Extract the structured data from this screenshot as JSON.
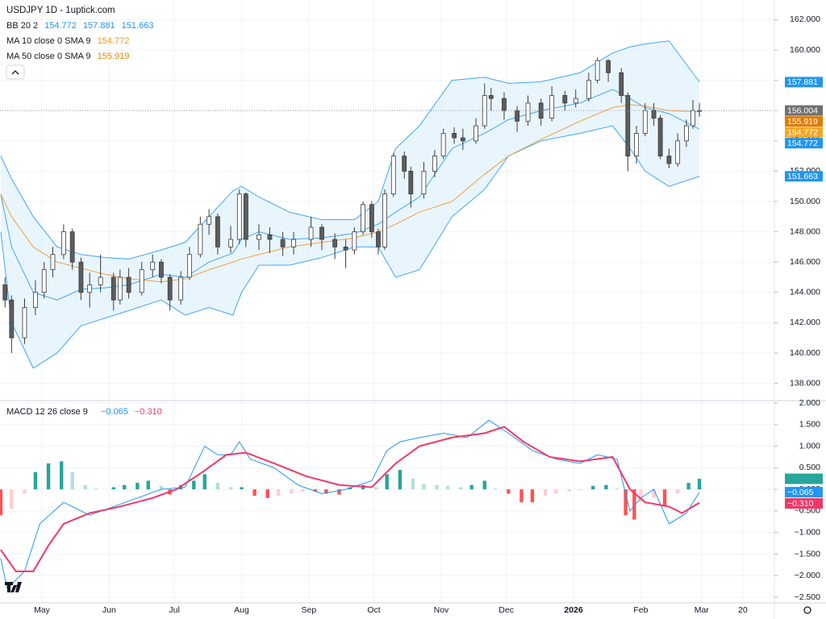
{
  "chart_data": {
    "type": "candlestick",
    "title": "USDJPY 1D - 1uptick.com",
    "legend": [
      {
        "label": "BB 20 2",
        "values": [
          154.772,
          157.881,
          151.663
        ],
        "color": "#2196f3"
      },
      {
        "label": "MA 10 close 0 SMA 9",
        "values": [
          154.772
        ],
        "color": "#f7931a"
      },
      {
        "label": "MA 50 close 0 SMA 9",
        "values": [
          155.919
        ],
        "color": "#e08a00"
      }
    ],
    "xlim": [
      -19.33,
      337.55
    ],
    "xticks": [
      {
        "value": 0,
        "label": "May"
      },
      {
        "value": 31,
        "label": "Jun"
      },
      {
        "value": 61,
        "label": "Jul"
      },
      {
        "value": 92,
        "label": "Aug"
      },
      {
        "value": 123,
        "label": "Sep"
      },
      {
        "value": 153,
        "label": "Oct"
      },
      {
        "value": 184,
        "label": "Nov"
      },
      {
        "value": 214,
        "label": "Dec"
      },
      {
        "value": 245,
        "label": "2026"
      },
      {
        "value": 276,
        "label": "Feb"
      },
      {
        "value": 304,
        "label": "Mar"
      },
      {
        "value": 323,
        "label": "20"
      }
    ],
    "ylim": [
      136.86,
      163.3
    ],
    "yticks": [
      {
        "value": 138,
        "label": "138.000"
      },
      {
        "value": 140,
        "label": "140.000"
      },
      {
        "value": 142,
        "label": "142.000"
      },
      {
        "value": 144,
        "label": "144.000"
      },
      {
        "value": 146,
        "label": "146.000"
      },
      {
        "value": 148,
        "label": "148.000"
      },
      {
        "value": 150,
        "label": "150.000"
      },
      {
        "value": 152,
        "label": "152.000"
      },
      {
        "value": 154,
        "label": "154.000"
      },
      {
        "value": 156,
        "label": "156.000"
      },
      {
        "value": 158,
        "label": "158.000"
      },
      {
        "value": 160,
        "label": "160.000"
      },
      {
        "value": 162,
        "label": "162.000"
      }
    ],
    "grid": true,
    "last_price": 156.004,
    "candles": {
      "up_color": "#ffffff",
      "down_color": "#5d5d5d",
      "edge_color": "#3b3b3b",
      "x": [
        -17,
        -14,
        -8,
        -3,
        1,
        5,
        10,
        14,
        18,
        22,
        27,
        33,
        36,
        40,
        46,
        51,
        55,
        59,
        64,
        68,
        73,
        77,
        81,
        87,
        91,
        94,
        100,
        105,
        111,
        116,
        124,
        129,
        135,
        140,
        144,
        148,
        152,
        155,
        158,
        162,
        167,
        170,
        176,
        181,
        185,
        190,
        194,
        200,
        204,
        207,
        213,
        219,
        224,
        230,
        235,
        241,
        246,
        252,
        256,
        261,
        267,
        270,
        274,
        278,
        282,
        285,
        289,
        293,
        297,
        300,
        303
      ],
      "open": [
        144.5,
        143.5,
        141,
        143,
        144,
        145.5,
        146.5,
        148,
        146,
        144,
        144.5,
        145,
        143.5,
        145,
        144,
        145.5,
        146,
        145,
        143.5,
        145,
        146.5,
        148.5,
        149,
        147,
        147.5,
        150.5,
        147.5,
        147.8,
        147.5,
        147,
        147.5,
        148.3,
        147.5,
        147,
        146.8,
        148,
        149.8,
        148,
        147,
        150.5,
        153,
        152,
        150.5,
        152,
        153,
        154.5,
        154.2,
        154,
        155,
        157,
        156.8,
        156,
        155.3,
        156.5,
        155.5,
        157,
        156.5,
        156.8,
        158,
        159.3,
        158.5,
        157,
        153,
        154.5,
        156,
        155.5,
        153,
        152.5,
        154,
        155,
        156
      ],
      "high": [
        145,
        143.8,
        143.6,
        144.8,
        146,
        147,
        148.5,
        148.2,
        146.3,
        145.3,
        146.5,
        145.3,
        145.5,
        145.6,
        146,
        146.5,
        146.2,
        145.2,
        145.4,
        147,
        149,
        149.5,
        149.2,
        148.4,
        150.8,
        150.6,
        148.5,
        148.3,
        148,
        148,
        149,
        148.5,
        147.9,
        147.5,
        148.3,
        150,
        150,
        148.2,
        150.8,
        153.2,
        153.3,
        152.3,
        152.6,
        153.4,
        154.8,
        154.9,
        154.8,
        155.5,
        157.8,
        157.5,
        157.2,
        156.3,
        157,
        156.8,
        157.6,
        157.3,
        157.4,
        158.5,
        159.5,
        159.4,
        158.8,
        157.2,
        155,
        156.5,
        156.5,
        155.7,
        153.5,
        154.5,
        155.4,
        156.7,
        156.5
      ],
      "low": [
        143,
        140,
        140.6,
        142.5,
        143.6,
        145,
        146.2,
        145.5,
        143.5,
        143,
        144,
        142.8,
        143.2,
        143.6,
        143.8,
        145,
        144.6,
        142.8,
        143.2,
        144.8,
        146.3,
        147.8,
        146.5,
        146.6,
        147.2,
        147,
        146.8,
        146.6,
        146.4,
        146.5,
        147,
        146.8,
        146.2,
        145.6,
        146.5,
        147.8,
        147.6,
        146.5,
        146.8,
        150.3,
        151.5,
        149.6,
        150.2,
        151.6,
        152.8,
        153.8,
        153.4,
        153.8,
        154.8,
        156,
        155.4,
        154.6,
        155,
        155,
        155.3,
        156,
        156.2,
        156.6,
        157.8,
        157.9,
        156.5,
        152,
        152.5,
        154.3,
        155,
        152.8,
        152.2,
        152.3,
        153.6,
        154.8,
        155.6
      ],
      "close": [
        143.5,
        141,
        143,
        144,
        145.5,
        146.5,
        148,
        146,
        144,
        144.5,
        145,
        143.5,
        145,
        144,
        145.5,
        146,
        145,
        143.5,
        145,
        146.5,
        148.5,
        149,
        147,
        147.5,
        150.5,
        147.5,
        147.8,
        147.5,
        147,
        147.5,
        148.3,
        147.5,
        147,
        146.8,
        148,
        149.8,
        148,
        147,
        150.5,
        153,
        152,
        150.5,
        152,
        153,
        154.5,
        154.2,
        154,
        155,
        157,
        156.8,
        156,
        155.3,
        156.5,
        155.5,
        157,
        156.5,
        156.8,
        158,
        159.3,
        158.5,
        157,
        153,
        154.5,
        156,
        155.5,
        153,
        152.5,
        154,
        155,
        156,
        156.004
      ]
    },
    "bands": {
      "fill": "#e3f2fd",
      "x": [
        -19,
        -14,
        -4,
        7,
        18,
        29,
        40,
        55,
        66,
        77,
        88,
        92,
        100,
        114,
        129,
        144,
        155,
        163,
        174,
        189,
        204,
        215,
        230,
        248,
        263,
        271,
        278,
        289,
        303
      ],
      "series": [
        {
          "color": "#42a5f5",
          "values": [
            153,
            151.5,
            149,
            147,
            146.5,
            146.3,
            146.2,
            146.8,
            147.3,
            149,
            150.7,
            151,
            150.3,
            149.3,
            148.8,
            148.8,
            150,
            153.5,
            155,
            158,
            158.2,
            157.8,
            157.9,
            158.5,
            159.8,
            160.2,
            160.4,
            160.6,
            157.9
          ]
        },
        {
          "color": "#42a5f5",
          "values": [
            150.5,
            147,
            144,
            143.5,
            144.2,
            144.3,
            144.5,
            145.2,
            145,
            146,
            146.6,
            147.5,
            148,
            147.5,
            147.6,
            147.9,
            148.5,
            149.3,
            150.3,
            153.5,
            154.5,
            155.4,
            156,
            156.5,
            157.4,
            156.8,
            156.2,
            155.8,
            154.772
          ]
        },
        {
          "color": "#42a5f5",
          "values": [
            148,
            142,
            139,
            140,
            141.8,
            142.3,
            142.8,
            143.5,
            142.5,
            143,
            142.5,
            144,
            145.8,
            145.8,
            146.3,
            147,
            147,
            145,
            145.5,
            149,
            150.8,
            153,
            154,
            154.5,
            155,
            153.5,
            152,
            151,
            151.663
          ]
        },
        {
          "color": "#f0a040",
          "values": [
            150.5,
            149,
            147,
            146,
            145.6,
            145.2,
            144.9,
            144.7,
            144.9,
            145.5,
            146,
            146.2,
            146.5,
            147,
            147.3,
            147.6,
            148,
            148.5,
            149.3,
            150,
            151.8,
            153,
            154.1,
            155.3,
            156.2,
            156.4,
            156.3,
            156,
            155.919
          ]
        }
      ]
    },
    "badges": [
      {
        "value": 157.881,
        "color": "#2196f3"
      },
      {
        "value": 156.004,
        "color": "#707070"
      },
      {
        "value": 155.919,
        "color": "#e07b00"
      },
      {
        "value": 154.772,
        "color": "#f5a623"
      },
      {
        "value": 154.772,
        "color": "#2196f3"
      },
      {
        "value": 151.663,
        "color": "#2196f3"
      }
    ],
    "macd": {
      "label": "MACD 12 26 close 9",
      "legend_values": [
        {
          "value": 0.244,
          "color": "#26a69a"
        },
        {
          "value": -0.065,
          "label": "−0.065",
          "color": "#2196f3"
        },
        {
          "value": -0.31,
          "label": "−0.310",
          "color": "#f23669"
        }
      ],
      "ylim": [
        -2.63,
        2.056
      ],
      "yticks": [
        {
          "value": 2,
          "label": "2.000"
        },
        {
          "value": 1.5,
          "label": "1.500"
        },
        {
          "value": 1,
          "label": "1.000"
        },
        {
          "value": 0.5,
          "label": "0.500"
        },
        {
          "value": 0,
          "label": "0.000"
        },
        {
          "value": -0.5,
          "label": "−0.500"
        },
        {
          "value": -1,
          "label": "−1.000"
        },
        {
          "value": -1.5,
          "label": "−1.500"
        },
        {
          "value": -2,
          "label": "−2.000"
        },
        {
          "value": -2.5,
          "label": "−2.500"
        }
      ],
      "histogram": {
        "colors": {
          "up_strong": "#26a69a",
          "up_weak": "#b2dfdb",
          "down_strong": "#ff5252",
          "down_weak": "#ffcdd2"
        },
        "x": [
          -19,
          -14,
          -8,
          -3,
          3,
          9,
          14,
          20,
          25,
          33,
          38,
          44,
          49,
          55,
          59,
          64,
          70,
          75,
          81,
          87,
          92,
          98,
          104,
          109,
          115,
          120,
          126,
          131,
          137,
          142,
          148,
          154,
          159,
          165,
          171,
          176,
          182,
          187,
          193,
          198,
          204,
          209,
          215,
          221,
          226,
          232,
          237,
          243,
          248,
          254,
          260,
          265,
          269,
          273,
          276,
          282,
          287,
          293,
          298,
          303
        ],
        "values": [
          -0.6,
          -0.45,
          -0.1,
          0.4,
          0.6,
          0.65,
          0.4,
          0.1,
          0.02,
          0.05,
          0.1,
          0.15,
          0.2,
          0.08,
          -0.12,
          0.1,
          0.2,
          0.35,
          0.15,
          0.05,
          0.05,
          -0.15,
          -0.2,
          -0.15,
          -0.1,
          -0.05,
          -0.05,
          -0.1,
          -0.12,
          0.05,
          0.1,
          0.05,
          0.35,
          0.45,
          0.25,
          0.12,
          0.1,
          0.08,
          0.05,
          0.1,
          0.2,
          0.02,
          -0.1,
          -0.3,
          -0.3,
          -0.15,
          -0.1,
          -0.05,
          -0.02,
          0.08,
          0.1,
          0.02,
          -0.6,
          -0.7,
          -0.3,
          -0.2,
          -0.4,
          -0.1,
          0.15,
          0.244
        ]
      },
      "lines": [
        {
          "color": "#2196f3",
          "x": [
            -19,
            -16,
            -8,
            -1,
            10,
            22,
            33,
            44,
            55,
            66,
            75,
            81,
            87,
            91,
            96,
            107,
            118,
            129,
            140,
            152,
            159,
            165,
            174,
            185,
            196,
            206,
            215,
            226,
            237,
            248,
            256,
            265,
            271,
            276,
            282,
            289,
            297,
            303
          ],
          "values": [
            -1.6,
            -2.3,
            -1.9,
            -0.8,
            -0.3,
            -0.6,
            -0.4,
            -0.2,
            0,
            0.05,
            1.0,
            0.8,
            0.8,
            1.1,
            0.7,
            0.5,
            0.1,
            -0.1,
            0,
            0.2,
            0.9,
            1.1,
            1.2,
            1.3,
            1.2,
            1.6,
            1.3,
            0.9,
            0.7,
            0.6,
            0.8,
            0.7,
            -0.5,
            -0.2,
            0,
            -0.8,
            -0.55,
            -0.065
          ]
        },
        {
          "color": "#f23669",
          "x": [
            -19,
            -12,
            -4,
            3,
            10,
            22,
            36,
            51,
            62,
            74,
            85,
            94,
            107,
            122,
            137,
            152,
            163,
            174,
            189,
            204,
            213,
            222,
            234,
            248,
            263,
            271,
            278,
            289,
            295,
            303
          ],
          "values": [
            -1.4,
            -1.9,
            -1.9,
            -1.3,
            -0.8,
            -0.55,
            -0.4,
            -0.2,
            0,
            0.4,
            0.8,
            0.85,
            0.6,
            0.3,
            0.1,
            0.05,
            0.6,
            1.0,
            1.2,
            1.3,
            1.45,
            1.1,
            0.75,
            0.65,
            0.75,
            0.0,
            -0.3,
            -0.4,
            -0.55,
            -0.31
          ]
        }
      ]
    }
  }
}
